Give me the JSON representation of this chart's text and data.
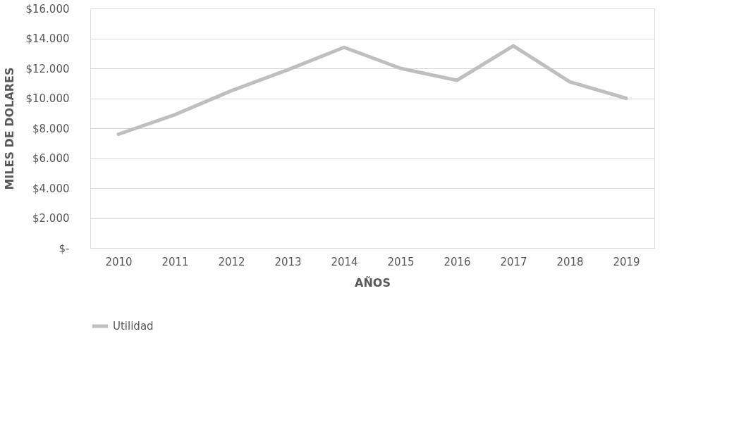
{
  "chart_data": {
    "type": "line",
    "categories": [
      "2010",
      "2011",
      "2012",
      "2013",
      "2014",
      "2015",
      "2016",
      "2017",
      "2018",
      "2019"
    ],
    "series": [
      {
        "name": "Utilidad",
        "color": "#bfbfbf",
        "values": [
          7600,
          8900,
          10500,
          11900,
          13400,
          12000,
          11200,
          13500,
          11100,
          10000
        ]
      }
    ],
    "xlabel": "AÑOS",
    "ylabel": "MILES DE DOLARES",
    "ylim": [
      0,
      16000
    ],
    "yticks": [
      {
        "value": 0,
        "label": "$-"
      },
      {
        "value": 2000,
        "label": "$2.000"
      },
      {
        "value": 4000,
        "label": "$4.000"
      },
      {
        "value": 6000,
        "label": "$6.000"
      },
      {
        "value": 8000,
        "label": "$8.000"
      },
      {
        "value": 10000,
        "label": "$10.000"
      },
      {
        "value": 12000,
        "label": "$12.000"
      },
      {
        "value": 14000,
        "label": "$14.000"
      },
      {
        "value": 16000,
        "label": "$16.000"
      }
    ],
    "grid": "y",
    "legend": "bottom",
    "marker": "none",
    "line_style": "solid"
  }
}
